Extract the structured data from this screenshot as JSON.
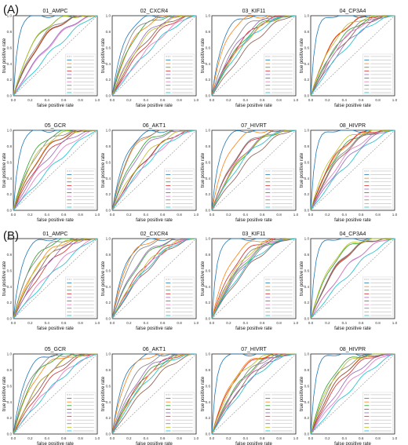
{
  "panels": [
    {
      "label": "(A)",
      "charts": [
        {
          "title": "01_AMPC"
        },
        {
          "title": "02_CXCR4"
        },
        {
          "title": "03_KIF11"
        },
        {
          "title": "04_CP3A4"
        },
        {
          "title": "05_GCR"
        },
        {
          "title": "06_AKT1"
        },
        {
          "title": "07_HIVRT"
        },
        {
          "title": "08_HIVPR"
        }
      ]
    },
    {
      "label": "(B)",
      "charts": [
        {
          "title": "01_AMPC"
        },
        {
          "title": "02_CXCR4"
        },
        {
          "title": "03_KIF11"
        },
        {
          "title": "04_CP3A4"
        },
        {
          "title": "05_GCR"
        },
        {
          "title": "06_AKT1"
        },
        {
          "title": "07_HIVRT"
        },
        {
          "title": "08_HIVPR"
        }
      ]
    }
  ],
  "axes": {
    "xlabel": "false positive rate",
    "ylabel": "true positive rate",
    "xlim": [
      0,
      1
    ],
    "ylim": [
      0,
      1
    ],
    "ticks": [
      "0.0",
      "0.2",
      "0.4",
      "0.6",
      "0.8",
      "1.0"
    ]
  },
  "chart_data": {
    "type": "line",
    "note_series": "Each subplot shows ROC curves of multiple methods plus a dashed Random diagonal; legend text in the image is too small to read.",
    "series": [
      {
        "name": "Random",
        "color": "#9e9e9e",
        "style": "dashed",
        "auc": 0.5
      },
      {
        "color": "#1f77b4",
        "auc": 0.92
      },
      {
        "color": "#ff7f0e",
        "auc": 0.8
      },
      {
        "color": "#2ca02c",
        "auc": 0.76
      },
      {
        "color": "#d62728",
        "auc": 0.72
      },
      {
        "color": "#9467bd",
        "auc": 0.7
      },
      {
        "color": "#8c564b",
        "auc": 0.68
      },
      {
        "color": "#e377c2",
        "auc": 0.66
      },
      {
        "color": "#7f7f7f",
        "auc": 0.78
      },
      {
        "color": "#bcbd22",
        "auc": 0.74
      },
      {
        "color": "#17becf",
        "auc": 0.62
      }
    ]
  }
}
